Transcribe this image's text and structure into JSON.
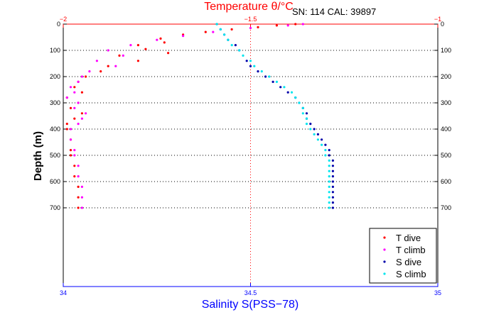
{
  "chart_data": {
    "type": "scatter",
    "top_title": "Temperature θ/°C",
    "top_title_color": "#ff0000",
    "annotation": "SN: 114  CAL: 39897",
    "xlabel": "Salinity S(PSS−78)",
    "xlabel_color": "#0000ff",
    "ylabel": "Depth (m)",
    "ylim": [
      0,
      1000
    ],
    "y_reversed": true,
    "y_ticks": [
      0,
      100,
      200,
      300,
      400,
      500,
      600,
      700
    ],
    "y_tick_labels": [
      "0",
      "100",
      "200",
      "300",
      "400",
      "500",
      "600",
      "700"
    ],
    "salinity_axis": {
      "range": [
        34,
        35
      ],
      "ticks": [
        34,
        34.5,
        35
      ],
      "tick_labels": [
        "34",
        "34.5",
        "35"
      ],
      "color": "#0000ff"
    },
    "temperature_axis": {
      "range": [
        -2,
        -1
      ],
      "ticks": [
        -2,
        -1.5,
        -1
      ],
      "tick_labels": [
        "−2",
        "−1.5",
        "−1"
      ],
      "color": "#ff0000"
    },
    "grid": "horizontal dotted at depth ticks; vertical dotted at -1.5 / 34.5",
    "legend_position": "bottom-right",
    "series": [
      {
        "name": "T dive",
        "axis": "temperature",
        "color": "#ff0000",
        "points": [
          [
            -1.38,
            0
          ],
          [
            -1.43,
            5
          ],
          [
            -1.48,
            12
          ],
          [
            -1.55,
            20
          ],
          [
            -1.62,
            30
          ],
          [
            -1.68,
            40
          ],
          [
            -1.74,
            55
          ],
          [
            -1.73,
            70
          ],
          [
            -1.8,
            80
          ],
          [
            -1.78,
            95
          ],
          [
            -1.72,
            110
          ],
          [
            -1.85,
            120
          ],
          [
            -1.8,
            140
          ],
          [
            -1.88,
            160
          ],
          [
            -1.9,
            180
          ],
          [
            -1.94,
            200
          ],
          [
            -1.96,
            220
          ],
          [
            -1.97,
            240
          ],
          [
            -1.95,
            260
          ],
          [
            -1.99,
            280
          ],
          [
            -1.96,
            300
          ],
          [
            -1.98,
            320
          ],
          [
            -1.95,
            340
          ],
          [
            -1.97,
            360
          ],
          [
            -1.99,
            380
          ],
          [
            -1.99,
            400
          ],
          [
            -1.98,
            440
          ],
          [
            -1.98,
            480
          ],
          [
            -1.98,
            500
          ],
          [
            -1.97,
            540
          ],
          [
            -1.97,
            580
          ],
          [
            -1.96,
            620
          ],
          [
            -1.96,
            660
          ],
          [
            -1.96,
            700
          ]
        ]
      },
      {
        "name": "T climb",
        "axis": "temperature",
        "color": "#ff00ff",
        "points": [
          [
            -1.36,
            0
          ],
          [
            -1.4,
            5
          ],
          [
            -1.5,
            15
          ],
          [
            -1.6,
            30
          ],
          [
            -1.68,
            45
          ],
          [
            -1.75,
            60
          ],
          [
            -1.82,
            80
          ],
          [
            -1.88,
            100
          ],
          [
            -1.84,
            120
          ],
          [
            -1.91,
            140
          ],
          [
            -1.86,
            160
          ],
          [
            -1.93,
            180
          ],
          [
            -1.95,
            200
          ],
          [
            -1.96,
            220
          ],
          [
            -1.98,
            240
          ],
          [
            -1.97,
            260
          ],
          [
            -1.99,
            280
          ],
          [
            -1.96,
            300
          ],
          [
            -1.97,
            320
          ],
          [
            -1.94,
            340
          ],
          [
            -1.95,
            360
          ],
          [
            -1.96,
            380
          ],
          [
            -1.98,
            400
          ],
          [
            -1.98,
            440
          ],
          [
            -1.97,
            480
          ],
          [
            -1.97,
            500
          ],
          [
            -1.96,
            540
          ],
          [
            -1.96,
            580
          ],
          [
            -1.95,
            620
          ],
          [
            -1.95,
            660
          ],
          [
            -1.95,
            700
          ]
        ]
      },
      {
        "name": "S dive",
        "axis": "salinity",
        "color": "#0000aa",
        "points": [
          [
            34.41,
            0
          ],
          [
            34.42,
            20
          ],
          [
            34.43,
            40
          ],
          [
            34.44,
            60
          ],
          [
            34.46,
            80
          ],
          [
            34.47,
            100
          ],
          [
            34.49,
            140
          ],
          [
            34.5,
            160
          ],
          [
            34.52,
            180
          ],
          [
            34.54,
            200
          ],
          [
            34.56,
            220
          ],
          [
            34.58,
            240
          ],
          [
            34.6,
            260
          ],
          [
            34.62,
            280
          ],
          [
            34.63,
            300
          ],
          [
            34.64,
            320
          ],
          [
            34.65,
            340
          ],
          [
            34.65,
            360
          ],
          [
            34.66,
            380
          ],
          [
            34.67,
            400
          ],
          [
            34.68,
            420
          ],
          [
            34.69,
            440
          ],
          [
            34.7,
            460
          ],
          [
            34.71,
            480
          ],
          [
            34.71,
            500
          ],
          [
            34.72,
            520
          ],
          [
            34.72,
            540
          ],
          [
            34.72,
            560
          ],
          [
            34.72,
            580
          ],
          [
            34.72,
            600
          ],
          [
            34.72,
            620
          ],
          [
            34.72,
            640
          ],
          [
            34.72,
            660
          ],
          [
            34.72,
            680
          ],
          [
            34.72,
            700
          ]
        ]
      },
      {
        "name": "S climb",
        "axis": "salinity",
        "color": "#00e5ee",
        "points": [
          [
            34.41,
            0
          ],
          [
            34.42,
            20
          ],
          [
            34.43,
            40
          ],
          [
            34.44,
            60
          ],
          [
            34.45,
            80
          ],
          [
            34.47,
            100
          ],
          [
            34.48,
            120
          ],
          [
            34.5,
            140
          ],
          [
            34.51,
            160
          ],
          [
            34.53,
            180
          ],
          [
            34.55,
            200
          ],
          [
            34.57,
            220
          ],
          [
            34.59,
            240
          ],
          [
            34.61,
            260
          ],
          [
            34.62,
            280
          ],
          [
            34.63,
            300
          ],
          [
            34.64,
            320
          ],
          [
            34.64,
            340
          ],
          [
            34.65,
            360
          ],
          [
            34.65,
            380
          ],
          [
            34.66,
            400
          ],
          [
            34.67,
            420
          ],
          [
            34.68,
            440
          ],
          [
            34.69,
            460
          ],
          [
            34.7,
            480
          ],
          [
            34.7,
            500
          ],
          [
            34.71,
            520
          ],
          [
            34.71,
            540
          ],
          [
            34.71,
            560
          ],
          [
            34.71,
            580
          ],
          [
            34.71,
            600
          ],
          [
            34.71,
            620
          ],
          [
            34.71,
            640
          ],
          [
            34.71,
            660
          ],
          [
            34.71,
            680
          ],
          [
            34.71,
            700
          ]
        ]
      }
    ]
  }
}
